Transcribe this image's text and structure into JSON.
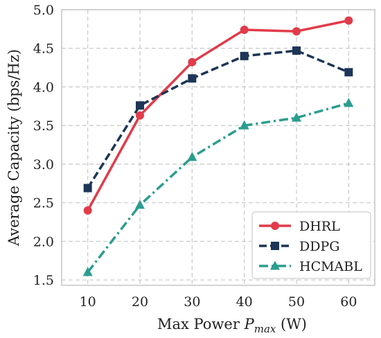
{
  "chart_data": {
    "type": "line",
    "title": "",
    "xlabel_prefix": "Max Power ",
    "xlabel_var": "P",
    "xlabel_sub": "max",
    "xlabel_suffix": " (W)",
    "ylabel": "Average Capacity (bps/Hz)",
    "x": [
      10,
      20,
      30,
      40,
      50,
      60
    ],
    "xlim": [
      5,
      65
    ],
    "ylim": [
      1.43,
      5.0
    ],
    "x_ticks": [
      10,
      20,
      30,
      40,
      50,
      60
    ],
    "y_ticks": [
      "1.5",
      "2.0",
      "2.5",
      "3.0",
      "3.5",
      "4.0",
      "4.5",
      "5.0"
    ],
    "grid": true,
    "legend_position": "lower-right",
    "series": [
      {
        "name": "DHRL",
        "values": [
          2.4,
          3.63,
          4.32,
          4.74,
          4.72,
          4.86
        ],
        "color": "#e23b4a",
        "marker": "circle",
        "dash": "solid"
      },
      {
        "name": "DDPG",
        "values": [
          2.69,
          3.76,
          4.11,
          4.4,
          4.47,
          4.19
        ],
        "color": "#1d3557",
        "marker": "square",
        "dash": "dashed"
      },
      {
        "name": "HCMABL",
        "values": [
          1.6,
          2.47,
          3.09,
          3.5,
          3.6,
          3.79
        ],
        "color": "#2a9d8f",
        "marker": "triangle",
        "dash": "dashdot"
      }
    ]
  }
}
